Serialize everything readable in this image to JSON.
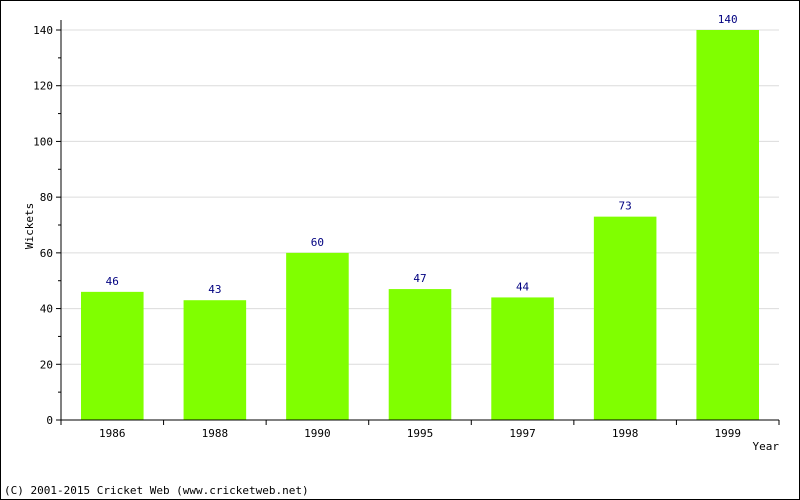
{
  "chart_data": {
    "type": "bar",
    "categories": [
      "1986",
      "1988",
      "1990",
      "1995",
      "1997",
      "1998",
      "1999"
    ],
    "values": [
      46,
      43,
      60,
      47,
      44,
      73,
      140
    ],
    "data_labels": [
      "46",
      "43",
      "60",
      "47",
      "44",
      "73",
      "140"
    ],
    "xlabel": "Year",
    "ylabel": "Wickets",
    "ylim": [
      0,
      140
    ],
    "yticks": [
      0,
      20,
      40,
      60,
      80,
      100,
      120,
      140
    ],
    "grid": "horizontal",
    "bar_color": "#80ff00",
    "value_label_color": "#000080"
  },
  "footer": {
    "copyright": "(C) 2001-2015 Cricket Web (www.cricketweb.net)"
  }
}
